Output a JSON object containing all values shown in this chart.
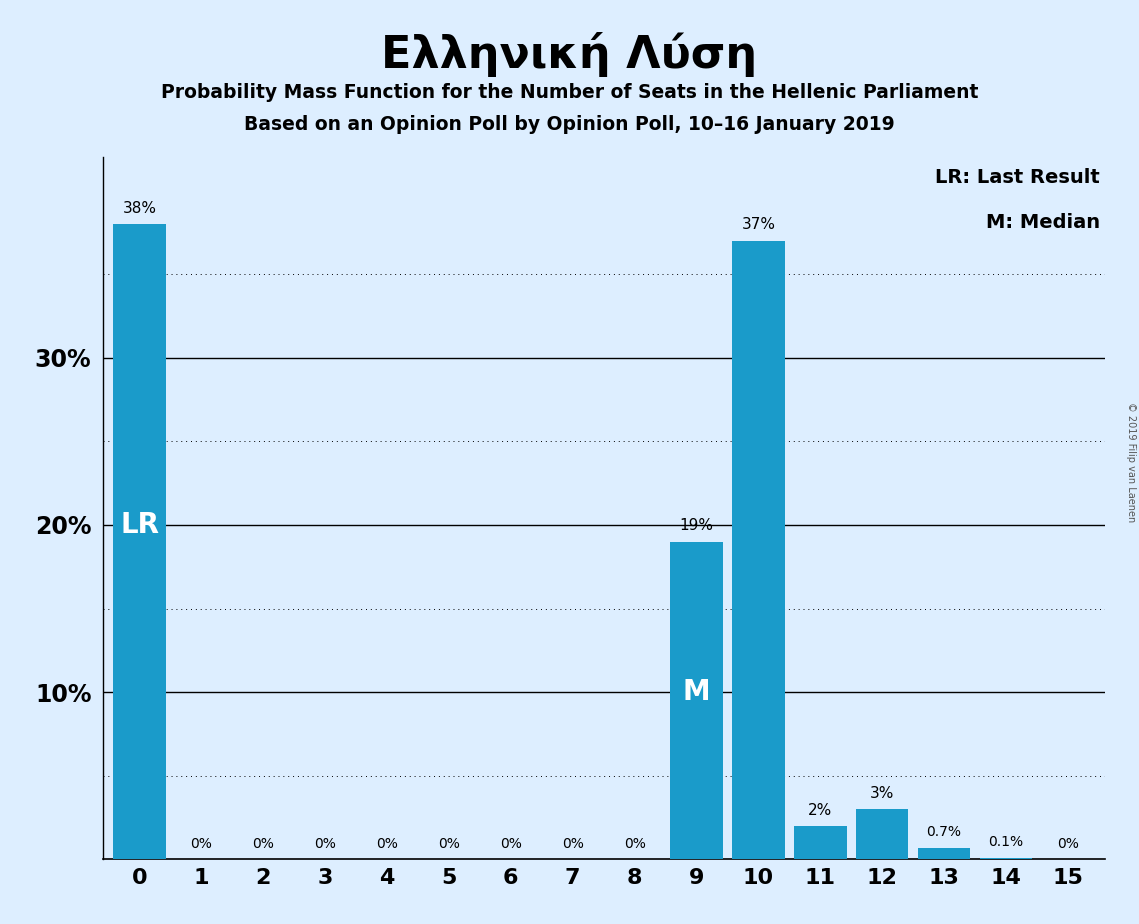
{
  "title": "Ελληνική Λύση",
  "subtitle1": "Probability Mass Function for the Number of Seats in the Hellenic Parliament",
  "subtitle2": "Based on an Opinion Poll by Opinion Poll, 10–16 January 2019",
  "categories": [
    0,
    1,
    2,
    3,
    4,
    5,
    6,
    7,
    8,
    9,
    10,
    11,
    12,
    13,
    14,
    15
  ],
  "values": [
    38,
    0,
    0,
    0,
    0,
    0,
    0,
    0,
    0,
    19,
    37,
    2,
    3,
    0.7,
    0.1,
    0
  ],
  "bar_color": "#1a9bca",
  "background_color": "#ddeeff",
  "ylim": [
    0,
    42
  ],
  "bar_labels": [
    "38%",
    "0%",
    "0%",
    "0%",
    "0%",
    "0%",
    "0%",
    "0%",
    "0%",
    "19%",
    "37%",
    "2%",
    "3%",
    "0.7%",
    "0.1%",
    "0%"
  ],
  "lr_bar": 0,
  "median_bar": 9,
  "legend_lr": "LR: Last Result",
  "legend_m": "M: Median",
  "watermark": "© 2019 Filip van Laenen",
  "label_lr": "LR",
  "label_m": "M",
  "solid_grid": [
    10,
    20,
    30
  ],
  "dotted_grid": [
    5,
    15,
    25,
    35
  ],
  "bar_width": 0.85
}
